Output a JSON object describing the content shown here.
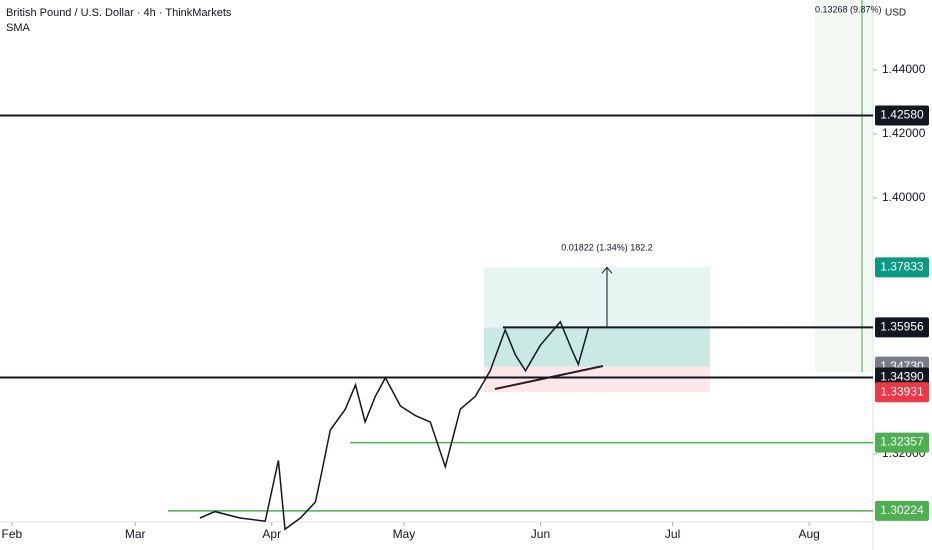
{
  "chart_data": {
    "type": "line",
    "title": "British Pound / U.S. Dollar · 4h · ThinkMarkets",
    "indicator": "SMA",
    "currency": "USD",
    "color": "#131722",
    "x": [
      74.7,
      78.1,
      83.8,
      89.5,
      92.5,
      94.0,
      97.5,
      100.9,
      102.0,
      104.3,
      107.7,
      110.0,
      112.2,
      114.5,
      116.8,
      120.2,
      123.6,
      127.0,
      130.4,
      133.8,
      137.2,
      140.6,
      144.0,
      146.3,
      148.6,
      152.0,
      156.5,
      159.3,
      160.6,
      162.9
    ],
    "values": [
      1.3,
      1.302,
      1.3,
      1.299,
      1.318,
      1.2965,
      1.3,
      1.305,
      1.312,
      1.3275,
      1.334,
      1.3416,
      1.33,
      1.338,
      1.3438,
      1.335,
      1.332,
      1.33,
      1.316,
      1.334,
      1.338,
      1.346,
      1.3588,
      1.351,
      1.346,
      1.354,
      1.3613,
      1.352,
      1.348,
      1.3594
    ],
    "xlim": [
      29.3,
      227.5
    ],
    "xticks": [
      {
        "value": 32,
        "label": "Feb"
      },
      {
        "value": 60,
        "label": "Mar"
      },
      {
        "value": 91,
        "label": "Apr"
      },
      {
        "value": 121,
        "label": "May"
      },
      {
        "value": 152,
        "label": "Jun"
      },
      {
        "value": 182,
        "label": "Jul"
      },
      {
        "value": 213,
        "label": "Aug"
      }
    ],
    "ylim": [
      1.29625,
      1.461875
    ],
    "yticks": [
      {
        "value": 1.44,
        "label": "1.44000"
      },
      {
        "value": 1.42,
        "label": "1.42000"
      },
      {
        "value": 1.4,
        "label": "1.40000"
      },
      {
        "value": 1.32,
        "label": "1.32000"
      }
    ],
    "levels": [
      {
        "value": 1.4258,
        "label": "1.42580",
        "color": "#131722"
      },
      {
        "value": 1.37833,
        "label": "1.37833",
        "color": "#089981"
      },
      {
        "value": 1.35956,
        "label": "1.35956",
        "color": "#131722"
      },
      {
        "value": 1.3473,
        "label": "1.34730",
        "color": "#787b86"
      },
      {
        "value": 1.3439,
        "label": "1.34390",
        "color": "#131722"
      },
      {
        "value": 1.33931,
        "label": "1.33931",
        "color": "#f23645"
      },
      {
        "value": 1.32357,
        "label": "1.32357",
        "color": "#4caf50"
      },
      {
        "value": 1.30224,
        "label": "1.30224",
        "color": "#4caf50"
      }
    ],
    "measure_label": "0.01822 (1.34%) 182.2",
    "range_label": "0.13268 (9.87%)"
  }
}
